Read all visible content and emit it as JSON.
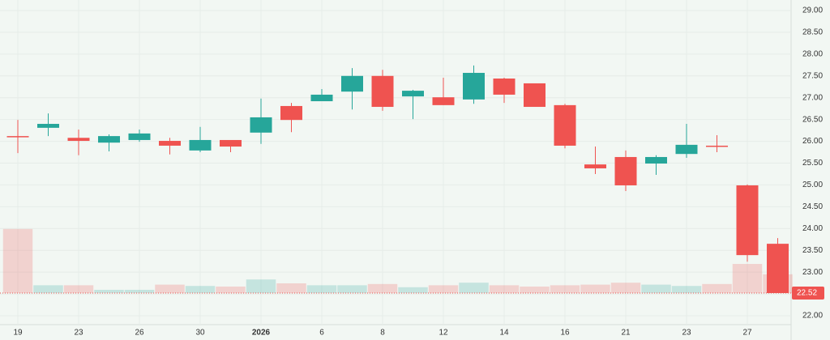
{
  "chart_data": {
    "type": "candlestick",
    "categories": [
      "19",
      null,
      "23",
      null,
      "26",
      null,
      "30",
      null,
      "2026",
      null,
      "6",
      null,
      "8",
      null,
      "12",
      null,
      "14",
      null,
      "16",
      null,
      "21",
      null,
      "23",
      null,
      "27",
      null
    ],
    "open": [
      26.12,
      26.31,
      26.08,
      25.97,
      26.03,
      26.01,
      25.79,
      26.03,
      26.2,
      26.81,
      26.92,
      27.14,
      27.5,
      27.03,
      27.01,
      26.96,
      27.44,
      27.33,
      26.83,
      25.47,
      25.64,
      25.49,
      25.71,
      25.9,
      24.99,
      23.65
    ],
    "high": [
      26.49,
      26.64,
      26.27,
      26.16,
      26.27,
      26.08,
      26.33,
      26.03,
      26.98,
      26.88,
      27.2,
      27.68,
      27.64,
      27.18,
      27.46,
      27.74,
      27.46,
      27.33,
      26.86,
      25.88,
      25.79,
      25.68,
      26.4,
      26.14,
      25.01,
      23.78
    ],
    "low": [
      25.73,
      26.12,
      25.68,
      25.77,
      25.99,
      25.7,
      25.75,
      25.75,
      25.94,
      26.21,
      26.92,
      26.73,
      26.7,
      26.51,
      26.83,
      26.86,
      26.88,
      26.79,
      25.84,
      25.25,
      24.86,
      25.23,
      25.62,
      25.75,
      23.24,
      22.52
    ],
    "close": [
      26.1,
      26.4,
      26.01,
      26.12,
      26.18,
      25.9,
      26.03,
      25.88,
      26.55,
      26.49,
      27.07,
      27.5,
      26.79,
      27.16,
      26.83,
      27.57,
      27.07,
      26.79,
      25.9,
      25.38,
      24.99,
      25.64,
      25.92,
      25.89,
      23.39,
      22.52
    ],
    "volume": [
      99,
      12,
      12,
      5,
      5,
      13,
      11,
      10,
      21,
      15,
      12,
      12,
      14,
      9,
      12,
      16,
      12,
      10,
      12,
      13,
      16,
      13,
      11,
      14,
      45,
      29
    ],
    "volume_ylim": [
      0,
      100
    ],
    "up_color": "#26a69a",
    "down_color": "#ef5350",
    "ylim": [
      22,
      29
    ],
    "yticks": [
      {
        "value": 22,
        "label": "22.00"
      },
      {
        "value": 22.5,
        "label": "22.50"
      },
      {
        "value": 23,
        "label": "23.00"
      },
      {
        "value": 23.5,
        "label": "23.50"
      },
      {
        "value": 24,
        "label": "24.00"
      },
      {
        "value": 24.5,
        "label": "24.50"
      },
      {
        "value": 25,
        "label": "25.00"
      },
      {
        "value": 25.5,
        "label": "25.50"
      },
      {
        "value": 26,
        "label": "26.00"
      },
      {
        "value": 26.5,
        "label": "26.50"
      },
      {
        "value": 27,
        "label": "27.00"
      },
      {
        "value": 27.5,
        "label": "27.50"
      },
      {
        "value": 28,
        "label": "28.00"
      },
      {
        "value": 28.5,
        "label": "28.50"
      },
      {
        "value": 29,
        "label": "29.00"
      }
    ],
    "last_price": {
      "value": 22.52,
      "label": "22.52"
    },
    "grid": true
  }
}
